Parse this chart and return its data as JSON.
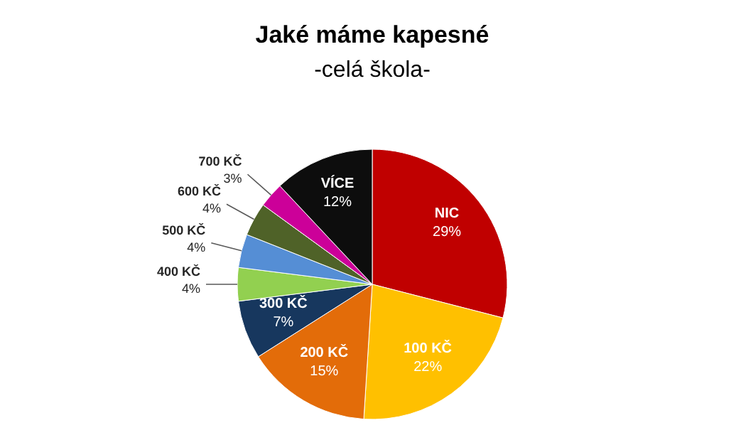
{
  "chart_data": {
    "type": "pie",
    "title": "Jaké máme kapesné",
    "subtitle": "-celá škola-",
    "categories": [
      "NIC",
      "100 KČ",
      "200 KČ",
      "300 KČ",
      "400 KČ",
      "500 KČ",
      "600 KČ",
      "700 KČ",
      "VÍCE"
    ],
    "values": [
      29,
      22,
      15,
      7,
      4,
      4,
      4,
      3,
      12
    ],
    "colors": [
      "#c00000",
      "#ffc000",
      "#e36c09",
      "#17375e",
      "#92d050",
      "#558ed5",
      "#4f6228",
      "#cc0099",
      "#0d0d0d"
    ],
    "value_labels": [
      "29%",
      "22%",
      "15%",
      "7%",
      "4%",
      "4%",
      "4%",
      "3%",
      "12%"
    ]
  }
}
